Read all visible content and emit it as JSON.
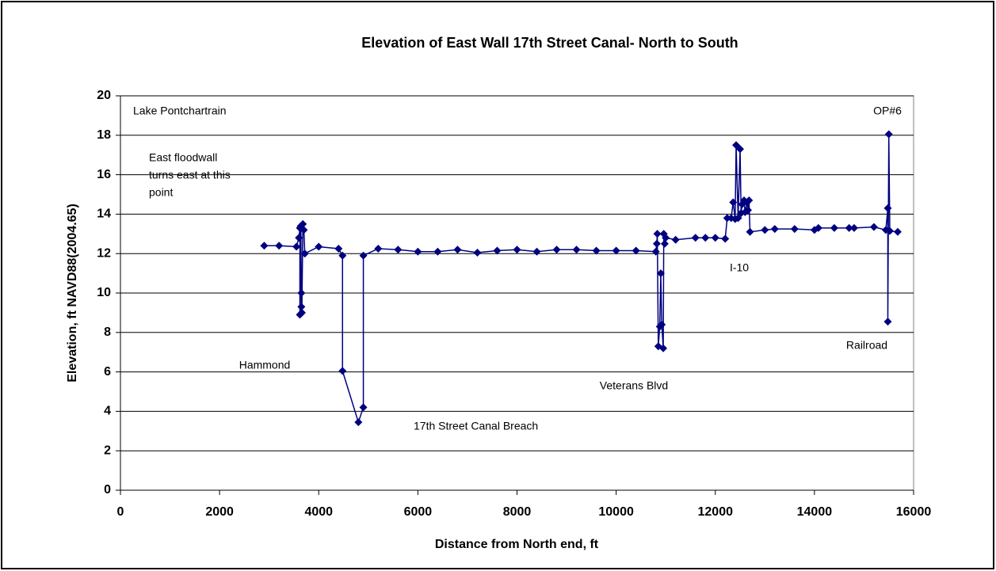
{
  "chart_data": {
    "type": "line",
    "title": "Elevation of East Wall 17th Street Canal- North to South",
    "xlabel": "Distance from North end, ft",
    "ylabel": "Elevation, ft NAVD88(2004.65)",
    "xlim": [
      0,
      16000
    ],
    "xticks": [
      0,
      2000,
      4000,
      6000,
      8000,
      10000,
      12000,
      14000,
      16000
    ],
    "ylim": [
      0,
      20
    ],
    "yticks": [
      0,
      2,
      4,
      6,
      8,
      10,
      12,
      14,
      16,
      18,
      20
    ],
    "grid": true,
    "annotations": [
      "Lake Pontchartrain",
      "OP#6",
      "East floodwall",
      "turns east at this",
      "point",
      "Hammond",
      "17th Street Canal Breach",
      "Veterans Blvd",
      "I-10",
      "Railroad"
    ],
    "series": [
      {
        "color": "#000080",
        "x": [
          2900,
          3200,
          3550,
          3600,
          3620,
          3620,
          3640,
          3650,
          3650,
          3660,
          3680,
          3700,
          3720,
          4000,
          4400,
          4480,
          4480,
          4800,
          4900,
          4900,
          5200,
          5600,
          6000,
          6400,
          6800,
          7200,
          7600,
          8000,
          8400,
          8800,
          9200,
          9600,
          10000,
          10400,
          10800,
          10820,
          10830,
          10850,
          10880,
          10900,
          10920,
          10950,
          10960,
          10980,
          11000,
          11200,
          11600,
          11800,
          12000,
          12200,
          12240,
          12320,
          12360,
          12400,
          12420,
          12460,
          12500,
          12520,
          12540,
          12580,
          12600,
          12640,
          12660,
          12680,
          12700,
          13000,
          13200,
          13600,
          14000,
          14080,
          14400,
          14700,
          14800,
          15200,
          15440,
          15480,
          15480,
          15500,
          15520,
          15680
        ],
        "values": [
          12.4,
          12.4,
          12.35,
          12.8,
          13.3,
          8.9,
          13.4,
          9.3,
          10.0,
          9.0,
          13.5,
          13.2,
          12.0,
          12.35,
          12.25,
          11.9,
          6.05,
          3.45,
          4.2,
          11.9,
          12.25,
          12.2,
          12.1,
          12.1,
          12.2,
          12.05,
          12.15,
          12.2,
          12.1,
          12.2,
          12.2,
          12.15,
          12.15,
          12.15,
          12.1,
          12.5,
          13.0,
          7.3,
          8.3,
          11.0,
          8.4,
          7.2,
          13.0,
          12.5,
          12.8,
          12.7,
          12.8,
          12.8,
          12.8,
          12.75,
          13.8,
          13.8,
          14.6,
          13.75,
          17.5,
          13.8,
          17.3,
          14.05,
          14.5,
          14.7,
          14.1,
          14.6,
          14.2,
          14.7,
          13.1,
          13.2,
          13.25,
          13.25,
          13.2,
          13.3,
          13.3,
          13.3,
          13.3,
          13.35,
          13.2,
          14.3,
          8.55,
          18.05,
          13.15,
          13.1
        ]
      }
    ]
  }
}
